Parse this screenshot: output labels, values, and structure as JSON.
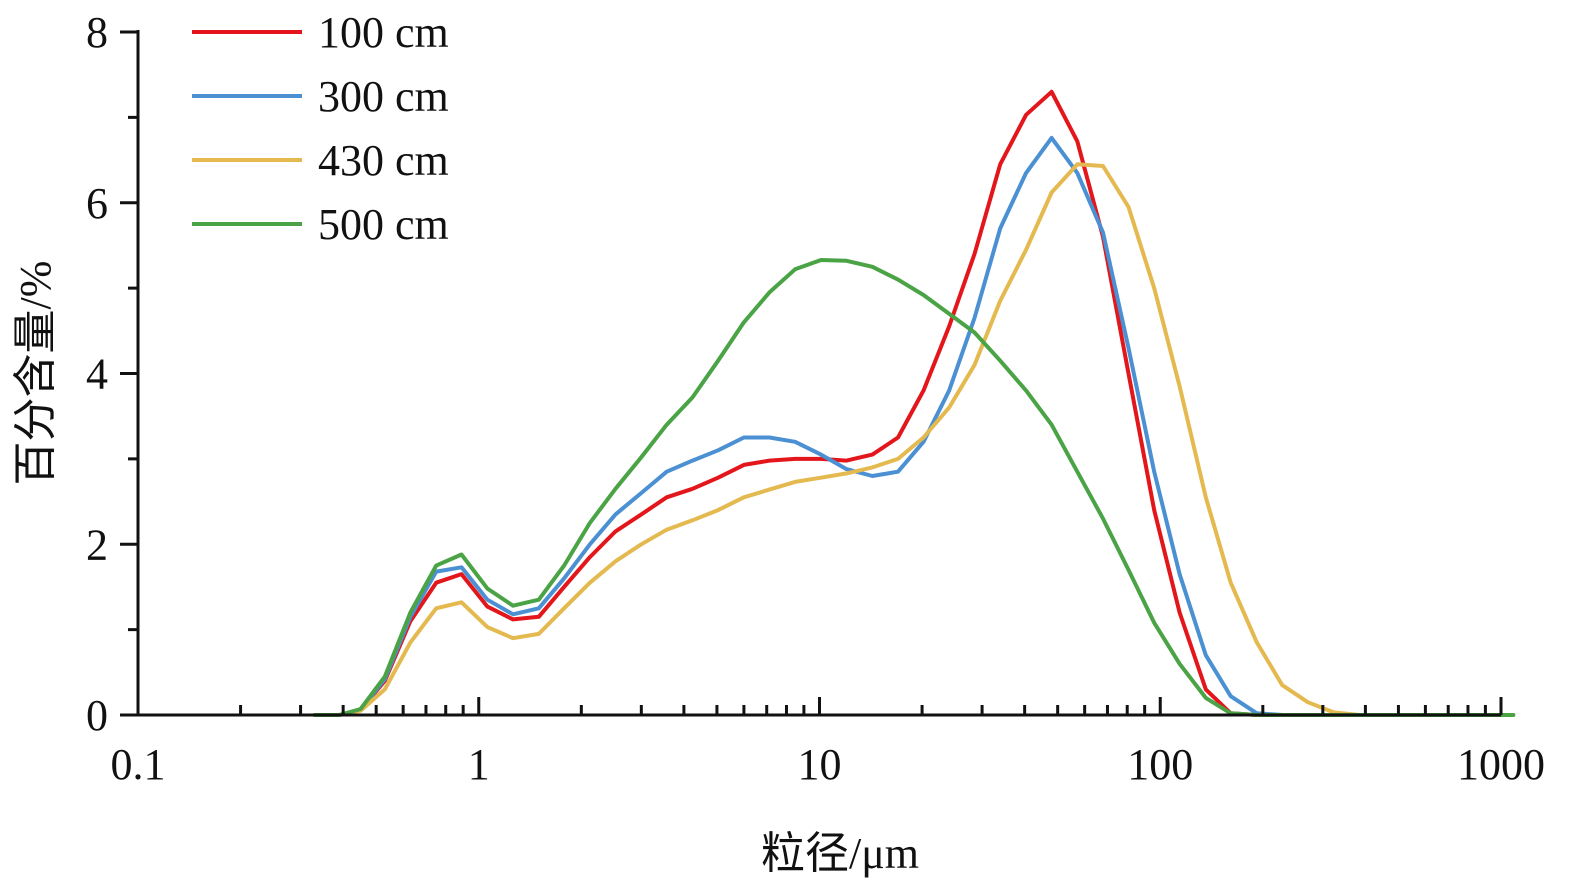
{
  "chart_data": {
    "type": "line",
    "title": "",
    "xlabel": "粒径/μm",
    "ylabel": "百分含量/%",
    "x_scale": "log",
    "xlim": [
      0.1,
      1000
    ],
    "ylim": [
      0,
      8
    ],
    "x_ticks": [
      0.1,
      1,
      10,
      100,
      1000
    ],
    "x_tick_labels": [
      "0.1",
      "1",
      "10",
      "100",
      "1000"
    ],
    "y_ticks": [
      0,
      2,
      4,
      6,
      8
    ],
    "y_tick_labels": [
      "0",
      "2",
      "4",
      "6",
      "8"
    ],
    "grid": false,
    "legend_position": "top-left",
    "x": [
      0.33,
      0.39,
      0.45,
      0.53,
      0.63,
      0.75,
      0.89,
      1.06,
      1.26,
      1.5,
      1.78,
      2.12,
      2.52,
      3.0,
      3.56,
      4.24,
      5.04,
      6.0,
      7.13,
      8.48,
      10.1,
      12.0,
      14.3,
      17.0,
      20.2,
      24.0,
      28.5,
      33.9,
      40.4,
      48.0,
      57.1,
      67.9,
      80.7,
      96.0,
      114,
      136,
      161,
      192,
      228,
      271,
      323,
      384,
      456,
      543,
      646,
      768,
      913,
      1086
    ],
    "series": [
      {
        "name": "100 cm",
        "color": "#e3161b",
        "values": [
          0,
          0,
          0.06,
          0.4,
          1.1,
          1.55,
          1.65,
          1.27,
          1.12,
          1.15,
          1.5,
          1.85,
          2.15,
          2.35,
          2.55,
          2.65,
          2.78,
          2.93,
          2.98,
          3.0,
          3.0,
          2.98,
          3.05,
          3.25,
          3.8,
          4.55,
          5.4,
          6.45,
          7.03,
          7.3,
          6.72,
          5.6,
          4.0,
          2.4,
          1.2,
          0.3,
          0.02,
          0,
          0,
          0,
          0,
          0,
          0,
          0,
          0,
          0,
          0,
          0
        ]
      },
      {
        "name": "300 cm",
        "color": "#4a90d2",
        "values": [
          0,
          0,
          0.06,
          0.42,
          1.15,
          1.68,
          1.73,
          1.35,
          1.18,
          1.25,
          1.6,
          2.0,
          2.35,
          2.6,
          2.85,
          2.98,
          3.1,
          3.25,
          3.25,
          3.2,
          3.05,
          2.88,
          2.8,
          2.85,
          3.2,
          3.8,
          4.65,
          5.7,
          6.35,
          6.76,
          6.35,
          5.65,
          4.3,
          2.85,
          1.65,
          0.7,
          0.22,
          0.02,
          0,
          0,
          0,
          0,
          0,
          0,
          0,
          0,
          0,
          0
        ]
      },
      {
        "name": "430 cm",
        "color": "#e4b94f",
        "values": [
          0,
          0,
          0.05,
          0.3,
          0.85,
          1.25,
          1.32,
          1.03,
          0.9,
          0.95,
          1.25,
          1.55,
          1.8,
          2.0,
          2.17,
          2.28,
          2.4,
          2.55,
          2.64,
          2.73,
          2.78,
          2.83,
          2.9,
          3.0,
          3.25,
          3.6,
          4.1,
          4.85,
          5.45,
          6.12,
          6.45,
          6.43,
          5.95,
          5.0,
          3.85,
          2.55,
          1.55,
          0.85,
          0.35,
          0.15,
          0.03,
          0,
          0,
          0,
          0,
          0,
          0,
          0
        ]
      },
      {
        "name": "500 cm",
        "color": "#4aa345",
        "values": [
          0,
          0,
          0.07,
          0.45,
          1.2,
          1.75,
          1.88,
          1.48,
          1.28,
          1.35,
          1.75,
          2.25,
          2.65,
          3.02,
          3.4,
          3.72,
          4.15,
          4.6,
          4.95,
          5.22,
          5.33,
          5.32,
          5.25,
          5.1,
          4.92,
          4.7,
          4.48,
          4.15,
          3.8,
          3.4,
          2.85,
          2.3,
          1.7,
          1.08,
          0.6,
          0.2,
          0.02,
          0,
          0,
          0,
          0,
          0,
          0,
          0,
          0,
          0,
          0,
          0
        ]
      }
    ]
  }
}
